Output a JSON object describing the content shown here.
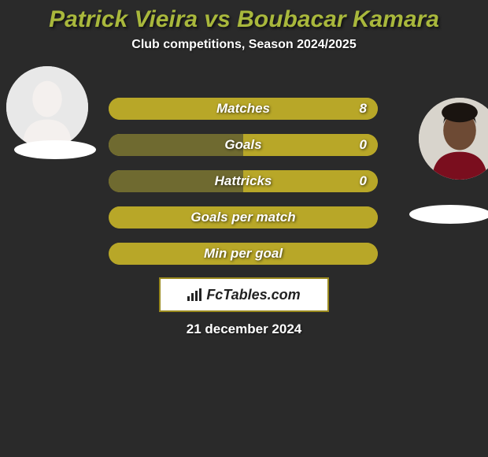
{
  "title": "Patrick Vieira vs Boubacar Kamara",
  "title_color": "#a9b83c",
  "title_fontsize": 30,
  "subtitle": "Club competitions, Season 2024/2025",
  "subtitle_color": "#ffffff",
  "subtitle_fontsize": 16,
  "background_color": "#2a2a2a",
  "date_text": "21 december 2024",
  "date_fontsize": 17,
  "brand_text": "FcTables.com",
  "brand_fontsize": 18,
  "bar_left_color": "#6f6a30",
  "bar_right_color": "#b8a728",
  "bar_track_color": "#b8a728",
  "bar_label_fontsize": 17,
  "bar_val_fontsize": 17,
  "bars": [
    {
      "label": "Matches",
      "left_val": "",
      "right_val": "8",
      "left_pct": 0,
      "right_pct": 100
    },
    {
      "label": "Goals",
      "left_val": "",
      "right_val": "0",
      "left_pct": 50,
      "right_pct": 50
    },
    {
      "label": "Hattricks",
      "left_val": "",
      "right_val": "0",
      "left_pct": 50,
      "right_pct": 50
    },
    {
      "label": "Goals per match",
      "left_val": "",
      "right_val": "",
      "left_pct": 0,
      "right_pct": 98
    },
    {
      "label": "Min per goal",
      "left_val": "",
      "right_val": "",
      "left_pct": 0,
      "right_pct": 98
    }
  ],
  "player_left": {
    "name": "Patrick Vieira",
    "skin": "#e8e8e8"
  },
  "player_right": {
    "name": "Boubacar Kamara",
    "skin": "#6d4a34",
    "hair": "#1a1410",
    "shirt": "#7a0e1e"
  }
}
